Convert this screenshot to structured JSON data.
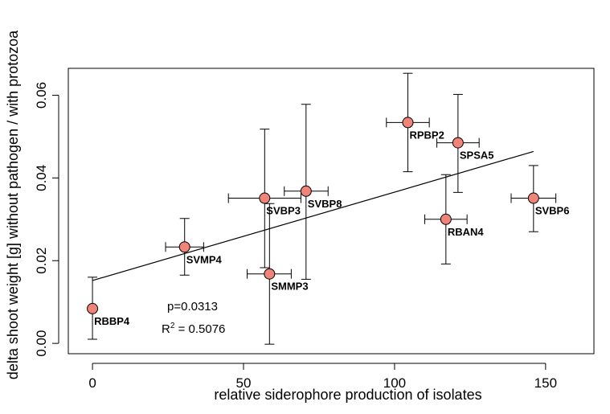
{
  "chart_data": {
    "type": "scatter",
    "title": "",
    "xlabel": "relative siderophore production of isolates",
    "ylabel": "delta shoot weight [g] without pathogen / with protozoa",
    "xlim": [
      -8,
      166
    ],
    "ylim": [
      -0.0025,
      0.0665
    ],
    "xticks": [
      0,
      50,
      100,
      150
    ],
    "xtick_labels": [
      "0",
      "50",
      "100",
      "150"
    ],
    "yticks": [
      0.0,
      0.02,
      0.04,
      0.06
    ],
    "ytick_labels": [
      "0.00",
      "0.02",
      "0.04",
      "0.06"
    ],
    "grid": false,
    "points": [
      {
        "label": "RBBP4",
        "x": 0,
        "y": 0.0084,
        "xerr_low": 0,
        "xerr_high": 0,
        "yerr_low": 0.001,
        "yerr_high": 0.016
      },
      {
        "label": "SVMP4",
        "x": 30.5,
        "y": 0.0233,
        "xerr_low": 24.2,
        "xerr_high": 36.8,
        "yerr_low": 0.0165,
        "yerr_high": 0.0302
      },
      {
        "label": "SVBP3",
        "x": 57,
        "y": 0.0351,
        "xerr_low": 45,
        "xerr_high": 69,
        "yerr_low": 0.0183,
        "yerr_high": 0.0518
      },
      {
        "label": "SMMP3",
        "x": 58.6,
        "y": 0.0168,
        "xerr_low": 51.2,
        "xerr_high": 65.8,
        "yerr_low": -0.0002,
        "yerr_high": 0.0338
      },
      {
        "label": "SVBP8",
        "x": 70.7,
        "y": 0.0368,
        "xerr_low": 63.5,
        "xerr_high": 78,
        "yerr_low": 0.0155,
        "yerr_high": 0.0578
      },
      {
        "label": "RPBP2",
        "x": 104.4,
        "y": 0.0534,
        "xerr_low": 97.3,
        "xerr_high": 111.5,
        "yerr_low": 0.0415,
        "yerr_high": 0.0653
      },
      {
        "label": "SPSA5",
        "x": 121,
        "y": 0.0485,
        "xerr_low": 114,
        "xerr_high": 128,
        "yerr_low": 0.0365,
        "yerr_high": 0.0602
      },
      {
        "label": "RBAN4",
        "x": 117,
        "y": 0.03,
        "xerr_low": 110,
        "xerr_high": 124,
        "yerr_low": 0.0192,
        "yerr_high": 0.0408
      },
      {
        "label": "SVBP6",
        "x": 146,
        "y": 0.0351,
        "xerr_low": 138.6,
        "xerr_high": 153.4,
        "yerr_low": 0.027,
        "yerr_high": 0.043
      }
    ],
    "regression": {
      "x": [
        0,
        146
      ],
      "y": [
        0.0152,
        0.0464
      ]
    },
    "annotations": {
      "p": "p=0.0313",
      "r2_prefix": "R",
      "r2_sup": "2",
      "r2_value": " = 0.5076"
    },
    "point_color": "#f08478",
    "line_color": "#000000"
  }
}
